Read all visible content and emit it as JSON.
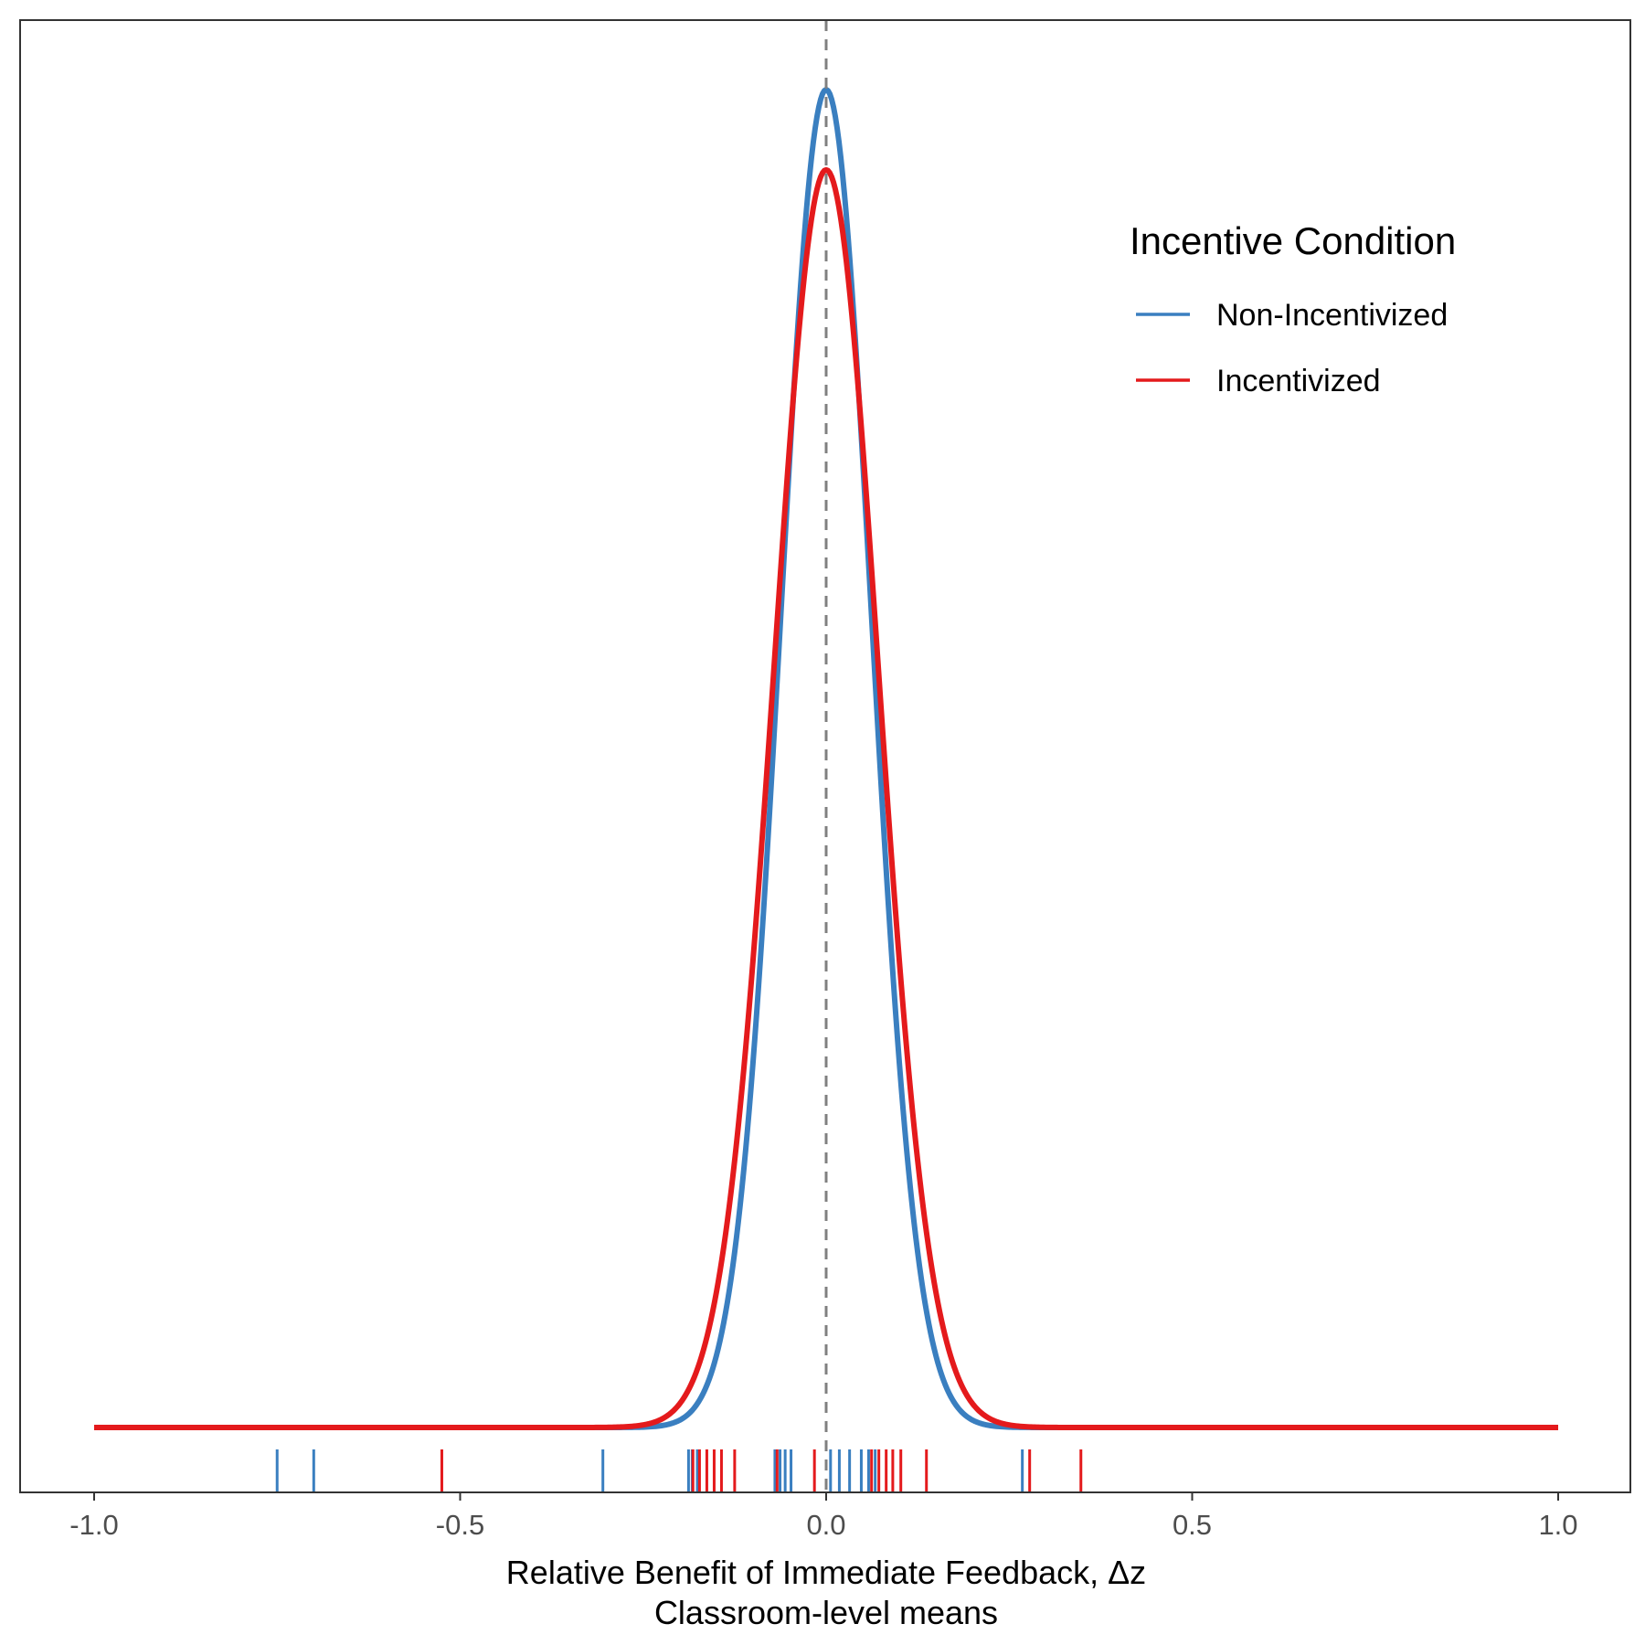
{
  "chart_data": {
    "type": "line",
    "title": "",
    "xlabel": "Relative Benefit of Immediate Feedback, Δz",
    "xlabel_sub": "Classroom-level means",
    "ylabel": "",
    "xlim": [
      -1.0,
      1.0
    ],
    "ylim": [
      0,
      1.08
    ],
    "x_ticks": [
      -1.0,
      -0.5,
      0.0,
      0.5,
      1.0
    ],
    "x_tick_labels": [
      "-1.0",
      "-0.5",
      "0.0",
      "0.5",
      "1.0"
    ],
    "reference_line": {
      "x": 0.0,
      "style": "dashed",
      "color": "#808080"
    },
    "legend": {
      "title": "Incentive Condition",
      "placement": "top-right (inside)",
      "entries": [
        "Non-Incentivized",
        "Incentivized"
      ]
    },
    "series": [
      {
        "name": "Non-Incentivized",
        "color": "#3a7fc0",
        "kind": "density",
        "mean": 0.0,
        "sd": 0.062,
        "peak": 1.0,
        "rug": [
          -0.75,
          -0.7,
          -0.305,
          -0.188,
          -0.183,
          -0.176,
          -0.07,
          -0.063,
          -0.056,
          -0.048,
          0.006,
          0.018,
          0.032,
          0.048,
          0.058,
          0.067,
          0.268
        ]
      },
      {
        "name": "Incentivized",
        "color": "#e41a1c",
        "kind": "density",
        "mean": 0.0,
        "sd": 0.071,
        "peak": 0.94,
        "rug": [
          -0.525,
          -0.182,
          -0.173,
          -0.163,
          -0.153,
          -0.143,
          -0.125,
          -0.067,
          -0.016,
          0.062,
          0.072,
          0.082,
          0.091,
          0.102,
          0.137,
          0.278,
          0.348
        ]
      }
    ],
    "grid": false
  }
}
